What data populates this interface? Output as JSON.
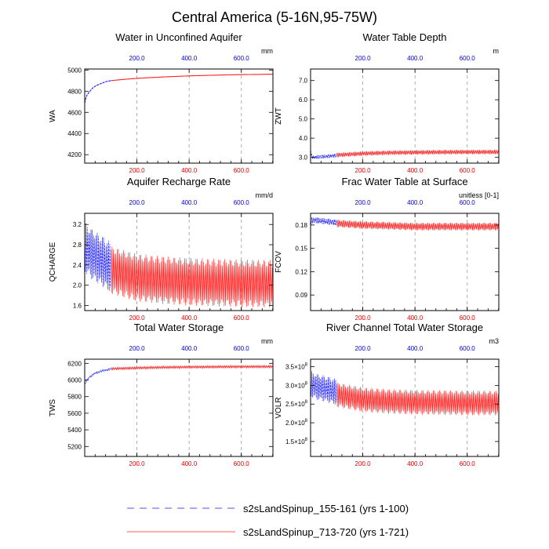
{
  "page": {
    "title": "Central America (5-16N,95-75W)"
  },
  "colors": {
    "early": "#1a1aff",
    "late": "#ff2020",
    "top_axis": "#0000cc",
    "bottom_axis": "#e00000"
  },
  "legend": {
    "entries": [
      {
        "label": "s2sLandSpinup_155-161 (yrs 1-100)",
        "color": "#1a1aff",
        "style": "dashed"
      },
      {
        "label": "s2sLandSpinup_713-720 (yrs 1-721)",
        "color": "#ff2020",
        "style": "solid"
      }
    ]
  },
  "chart_data": [
    {
      "type": "line",
      "title": "Water in Unconfined Aquifer",
      "ylabel": "WA",
      "units": "mm",
      "ylim": [
        4120,
        5010
      ],
      "xlim": [
        0,
        721
      ],
      "yticks": [
        "4200",
        "4400",
        "4600",
        "4800",
        "5000"
      ],
      "ytick_values": [
        4200,
        4400,
        4600,
        4800,
        5000
      ],
      "top_xticks": [
        "200.0",
        "400.0",
        "600.0"
      ],
      "bottom_xticks": [
        "200.0",
        "400.0",
        "600.0"
      ],
      "xtick_values": [
        200,
        400,
        600
      ],
      "series": [
        {
          "name": "s2sLandSpinup_155-161 (yrs 1-100)",
          "x": [
            0,
            5,
            10,
            20,
            30,
            45,
            60,
            80,
            100
          ],
          "y": [
            4690,
            4740,
            4770,
            4800,
            4830,
            4855,
            4870,
            4890,
            4900
          ]
        },
        {
          "name": "s2sLandSpinup_713-720 (yrs 1-721)",
          "x": [
            100,
            150,
            200,
            300,
            400,
            500,
            600,
            721
          ],
          "y": [
            4900,
            4912,
            4922,
            4935,
            4945,
            4952,
            4957,
            4961
          ]
        }
      ]
    },
    {
      "type": "line",
      "title": "Water Table Depth",
      "ylabel": "ZWT",
      "units": "m",
      "ylim": [
        2.7,
        7.6
      ],
      "xlim": [
        0,
        721
      ],
      "yticks": [
        "3.0",
        "4.0",
        "5.0",
        "6.0",
        "7.0"
      ],
      "ytick_values": [
        3,
        4,
        5,
        6,
        7
      ],
      "top_xticks": [
        "200.0",
        "400.0",
        "600.0"
      ],
      "bottom_xticks": [
        "200.0",
        "400.0",
        "600.0"
      ],
      "xtick_values": [
        200,
        400,
        600
      ],
      "series": [
        {
          "name": "s2sLandSpinup_155-161 (yrs 1-100)",
          "x": [
            0,
            3,
            8,
            15,
            30,
            60,
            100
          ],
          "y": [
            3.45,
            3.1,
            3.0,
            3.0,
            3.02,
            3.05,
            3.1
          ],
          "amplitude": 0.1
        },
        {
          "name": "s2sLandSpinup_713-720 (yrs 1-721)",
          "x": [
            100,
            200,
            300,
            400,
            500,
            600,
            721
          ],
          "y": [
            3.12,
            3.2,
            3.24,
            3.26,
            3.27,
            3.28,
            3.28
          ],
          "amplitude": 0.12
        }
      ]
    },
    {
      "type": "line",
      "title": "Aquifer Recharge Rate",
      "ylabel": "QCHARGE",
      "units": "mm/d",
      "ylim": [
        1.5,
        3.42
      ],
      "xlim": [
        0,
        721
      ],
      "yticks": [
        "1.6",
        "2.0",
        "2.4",
        "2.8",
        "3.2"
      ],
      "ytick_values": [
        1.6,
        2.0,
        2.4,
        2.8,
        3.2
      ],
      "top_xticks": [
        "200.0",
        "400.0",
        "600.0"
      ],
      "bottom_xticks": [
        "200.0",
        "400.0",
        "600.0"
      ],
      "xtick_values": [
        200,
        400,
        600
      ],
      "series": [
        {
          "name": "s2sLandSpinup_155-161 (yrs 1-100)",
          "x": [
            0,
            10,
            30,
            60,
            100
          ],
          "y": [
            2.75,
            2.7,
            2.6,
            2.5,
            2.35
          ],
          "amplitude": 0.5
        },
        {
          "name": "s2sLandSpinup_713-720 (yrs 1-721)",
          "x": [
            100,
            200,
            300,
            400,
            500,
            600,
            721
          ],
          "y": [
            2.3,
            2.15,
            2.1,
            2.07,
            2.05,
            2.04,
            2.03
          ],
          "amplitude": 0.47
        }
      ]
    },
    {
      "type": "line",
      "title": "Frac Water Table at Surface",
      "ylabel": "FCOV",
      "units": "unitless [0-1]",
      "ylim": [
        0.07,
        0.195
      ],
      "xlim": [
        0,
        721
      ],
      "yticks": [
        "0.09",
        "0.12",
        "0.15",
        "0.18"
      ],
      "ytick_values": [
        0.09,
        0.12,
        0.15,
        0.18
      ],
      "top_xticks": [
        "200.0",
        "400.0",
        "600.0"
      ],
      "bottom_xticks": [
        "200.0",
        "400.0",
        "600.0"
      ],
      "xtick_values": [
        200,
        400,
        600
      ],
      "series": [
        {
          "name": "s2sLandSpinup_155-161 (yrs 1-100)",
          "x": [
            0,
            5,
            20,
            50,
            100
          ],
          "y": [
            0.184,
            0.186,
            0.186,
            0.185,
            0.183
          ],
          "amplitude": 0.004
        },
        {
          "name": "s2sLandSpinup_713-720 (yrs 1-721)",
          "x": [
            100,
            200,
            300,
            400,
            500,
            600,
            721
          ],
          "y": [
            0.182,
            0.18,
            0.179,
            0.178,
            0.178,
            0.178,
            0.178
          ],
          "amplitude": 0.005
        }
      ]
    },
    {
      "type": "line",
      "title": "Total Water Storage",
      "ylabel": "TWS",
      "units": "mm",
      "ylim": [
        5080,
        6250
      ],
      "xlim": [
        0,
        721
      ],
      "yticks": [
        "5200",
        "5400",
        "5600",
        "5800",
        "6000",
        "6200"
      ],
      "ytick_values": [
        5200,
        5400,
        5600,
        5800,
        6000,
        6200
      ],
      "top_xticks": [
        "200.0",
        "400.0",
        "600.0"
      ],
      "bottom_xticks": [
        "200.0",
        "400.0",
        "600.0"
      ],
      "xtick_values": [
        200,
        400,
        600
      ],
      "series": [
        {
          "name": "s2sLandSpinup_155-161 (yrs 1-100)",
          "x": [
            0,
            10,
            20,
            40,
            60,
            80,
            100
          ],
          "y": [
            5960,
            6000,
            6040,
            6080,
            6105,
            6120,
            6130
          ],
          "amplitude": 12
        },
        {
          "name": "s2sLandSpinup_713-720 (yrs 1-721)",
          "x": [
            100,
            200,
            300,
            400,
            500,
            600,
            721
          ],
          "y": [
            6135,
            6145,
            6152,
            6156,
            6158,
            6160,
            6161
          ],
          "amplitude": 15
        }
      ]
    },
    {
      "type": "line",
      "title": "River Channel Total Water Storage",
      "ylabel": "VOLR",
      "units": "m3",
      "ylim": [
        1.1,
        3.7
      ],
      "xlim": [
        0,
        721
      ],
      "yticks": [
        "1.5×10",
        "2.0×10",
        "2.5×10",
        "3.0×10",
        "3.5×10"
      ],
      "ytick_exponent": "8",
      "ytick_values": [
        1.5,
        2.0,
        2.5,
        3.0,
        3.5
      ],
      "top_xticks": [
        "200.0",
        "400.0",
        "600.0"
      ],
      "bottom_xticks": [
        "200.0",
        "400.0",
        "600.0"
      ],
      "xtick_values": [
        200,
        400,
        600
      ],
      "series": [
        {
          "name": "s2sLandSpinup_155-161 (yrs 1-100)",
          "x": [
            0,
            10,
            30,
            60,
            100
          ],
          "y": [
            3.05,
            3.0,
            2.95,
            2.9,
            2.82
          ],
          "amplitude": 0.35
        },
        {
          "name": "s2sLandSpinup_713-720 (yrs 1-721)",
          "x": [
            100,
            200,
            300,
            400,
            500,
            600,
            721
          ],
          "y": [
            2.75,
            2.62,
            2.57,
            2.55,
            2.54,
            2.53,
            2.53
          ],
          "amplitude": 0.33
        }
      ]
    }
  ]
}
